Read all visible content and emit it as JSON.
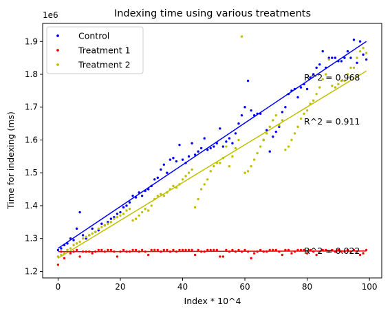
{
  "chart_data": {
    "type": "scatter",
    "title": "Indexing time using various treatments",
    "xlabel": "Index * 10^4",
    "ylabel": "Time for indexing (ms)",
    "y_offset_label": "1e6",
    "xlim": [
      -4.95,
      103.95
    ],
    "ylim": [
      1.18,
      1.955
    ],
    "x_ticks": [
      0,
      20,
      40,
      60,
      80,
      100
    ],
    "y_ticks": [
      1.2,
      1.3,
      1.4,
      1.5,
      1.6,
      1.7,
      1.8,
      1.9
    ],
    "legend_position": "upper-left",
    "series": [
      {
        "name": "Control",
        "color": "#0000ff",
        "x": [
          0,
          1,
          2,
          3,
          4,
          5,
          6,
          7,
          8,
          9,
          10,
          11,
          12,
          13,
          14,
          15,
          16,
          17,
          18,
          19,
          20,
          21,
          22,
          23,
          24,
          25,
          26,
          27,
          28,
          29,
          30,
          31,
          32,
          33,
          34,
          35,
          36,
          37,
          38,
          39,
          40,
          41,
          42,
          43,
          44,
          45,
          46,
          47,
          48,
          49,
          50,
          51,
          52,
          53,
          54,
          55,
          56,
          57,
          58,
          59,
          60,
          61,
          62,
          63,
          64,
          65,
          66,
          67,
          68,
          69,
          70,
          71,
          72,
          73,
          74,
          75,
          76,
          77,
          78,
          79,
          80,
          81,
          82,
          83,
          84,
          85,
          86,
          87,
          88,
          89,
          90,
          91,
          92,
          93,
          94,
          95,
          96,
          97,
          98,
          99
        ],
        "y": [
          1.265,
          1.27,
          1.28,
          1.285,
          1.3,
          1.295,
          1.33,
          1.38,
          1.31,
          1.3,
          1.31,
          1.33,
          1.32,
          1.325,
          1.345,
          1.34,
          1.35,
          1.36,
          1.365,
          1.375,
          1.38,
          1.395,
          1.4,
          1.41,
          1.43,
          1.425,
          1.44,
          1.43,
          1.445,
          1.45,
          1.46,
          1.48,
          1.485,
          1.51,
          1.525,
          1.5,
          1.54,
          1.545,
          1.535,
          1.585,
          1.54,
          1.53,
          1.55,
          1.59,
          1.555,
          1.565,
          1.575,
          1.605,
          1.57,
          1.575,
          1.58,
          1.59,
          1.635,
          1.58,
          1.595,
          1.605,
          1.59,
          1.62,
          1.65,
          1.675,
          1.7,
          1.78,
          1.69,
          1.675,
          1.68,
          1.68,
          1.6,
          1.63,
          1.565,
          1.61,
          1.625,
          1.64,
          1.685,
          1.7,
          1.74,
          1.75,
          1.755,
          1.73,
          1.76,
          1.77,
          1.755,
          1.79,
          1.8,
          1.82,
          1.83,
          1.87,
          1.82,
          1.85,
          1.85,
          1.85,
          1.84,
          1.84,
          1.85,
          1.87,
          1.85,
          1.905,
          1.835,
          1.9,
          1.86,
          1.845
        ]
      },
      {
        "name": "Treatment 1",
        "color": "#ff0000",
        "x": [
          0,
          1,
          2,
          3,
          4,
          5,
          6,
          7,
          8,
          9,
          10,
          11,
          12,
          13,
          14,
          15,
          16,
          17,
          18,
          19,
          20,
          21,
          22,
          23,
          24,
          25,
          26,
          27,
          28,
          29,
          30,
          31,
          32,
          33,
          34,
          35,
          36,
          37,
          38,
          39,
          40,
          41,
          42,
          43,
          44,
          45,
          46,
          47,
          48,
          49,
          50,
          51,
          52,
          53,
          54,
          55,
          56,
          57,
          58,
          59,
          60,
          61,
          62,
          63,
          64,
          65,
          66,
          67,
          68,
          69,
          70,
          71,
          72,
          73,
          74,
          75,
          76,
          77,
          78,
          79,
          80,
          81,
          82,
          83,
          84,
          85,
          86,
          87,
          88,
          89,
          90,
          91,
          92,
          93,
          94,
          95,
          96,
          97,
          98,
          99
        ],
        "y": [
          1.22,
          1.26,
          1.24,
          1.265,
          1.255,
          1.26,
          1.265,
          1.245,
          1.26,
          1.26,
          1.26,
          1.255,
          1.26,
          1.265,
          1.265,
          1.26,
          1.265,
          1.265,
          1.26,
          1.245,
          1.26,
          1.265,
          1.26,
          1.26,
          1.265,
          1.265,
          1.26,
          1.265,
          1.26,
          1.25,
          1.265,
          1.265,
          1.265,
          1.26,
          1.265,
          1.265,
          1.26,
          1.265,
          1.26,
          1.265,
          1.265,
          1.265,
          1.265,
          1.265,
          1.25,
          1.265,
          1.26,
          1.26,
          1.265,
          1.265,
          1.265,
          1.265,
          1.245,
          1.245,
          1.265,
          1.26,
          1.265,
          1.26,
          1.265,
          1.26,
          1.265,
          1.26,
          1.24,
          1.255,
          1.26,
          1.265,
          1.26,
          1.26,
          1.265,
          1.265,
          1.265,
          1.26,
          1.25,
          1.265,
          1.265,
          1.255,
          1.26,
          1.265,
          1.265,
          1.265,
          1.255,
          1.265,
          1.26,
          1.25,
          1.26,
          1.265,
          1.265,
          1.26,
          1.265,
          1.26,
          1.265,
          1.26,
          1.26,
          1.265,
          1.26,
          1.265,
          1.26,
          1.25,
          1.255,
          1.265
        ]
      },
      {
        "name": "Treatment 2",
        "color": "#bfbf00",
        "x": [
          0,
          1,
          2,
          3,
          4,
          5,
          6,
          7,
          8,
          9,
          10,
          11,
          12,
          13,
          14,
          15,
          16,
          17,
          18,
          19,
          20,
          21,
          22,
          23,
          24,
          25,
          26,
          27,
          28,
          29,
          30,
          31,
          32,
          33,
          34,
          35,
          36,
          37,
          38,
          39,
          40,
          41,
          42,
          43,
          44,
          45,
          46,
          47,
          48,
          49,
          50,
          51,
          52,
          53,
          54,
          55,
          56,
          57,
          58,
          59,
          60,
          61,
          62,
          63,
          64,
          65,
          66,
          67,
          68,
          69,
          70,
          71,
          72,
          73,
          74,
          75,
          76,
          77,
          78,
          79,
          80,
          81,
          82,
          83,
          84,
          85,
          86,
          87,
          88,
          89,
          90,
          91,
          92,
          93,
          94,
          95,
          96,
          97,
          98,
          99
        ],
        "y": [
          1.245,
          1.25,
          1.255,
          1.265,
          1.27,
          1.28,
          1.285,
          1.29,
          1.3,
          1.305,
          1.31,
          1.315,
          1.32,
          1.33,
          1.335,
          1.34,
          1.345,
          1.35,
          1.36,
          1.365,
          1.37,
          1.375,
          1.385,
          1.39,
          1.355,
          1.36,
          1.37,
          1.38,
          1.39,
          1.385,
          1.4,
          1.42,
          1.43,
          1.435,
          1.43,
          1.44,
          1.45,
          1.46,
          1.455,
          1.465,
          1.48,
          1.49,
          1.5,
          1.51,
          1.395,
          1.42,
          1.45,
          1.465,
          1.48,
          1.505,
          1.52,
          1.53,
          1.53,
          1.545,
          1.58,
          1.52,
          1.55,
          1.575,
          1.6,
          1.915,
          1.5,
          1.505,
          1.52,
          1.54,
          1.56,
          1.58,
          1.6,
          1.62,
          1.64,
          1.66,
          1.675,
          1.645,
          1.66,
          1.57,
          1.58,
          1.6,
          1.62,
          1.64,
          1.665,
          1.68,
          1.69,
          1.71,
          1.72,
          1.74,
          1.76,
          1.785,
          1.8,
          1.845,
          1.765,
          1.76,
          1.77,
          1.78,
          1.78,
          1.8,
          1.82,
          1.82,
          1.85,
          1.87,
          1.88,
          1.865
        ]
      }
    ],
    "fit_lines": [
      {
        "color": "#0000ff",
        "x": [
          0,
          99
        ],
        "y": [
          1.27,
          1.9
        ]
      },
      {
        "color": "#bfbf00",
        "x": [
          0,
          99
        ],
        "y": [
          1.24,
          1.81
        ]
      },
      {
        "color": "#ff0000",
        "x": [
          0,
          99
        ],
        "y": [
          1.26,
          1.262
        ]
      }
    ],
    "annotations": [
      {
        "text": "R^2 = 0.968",
        "x": 79,
        "y": 1.79
      },
      {
        "text": "R^2 = 0.911",
        "x": 79,
        "y": 1.655
      },
      {
        "text": "R^2 = 0.022",
        "x": 79,
        "y": 1.262
      }
    ]
  }
}
